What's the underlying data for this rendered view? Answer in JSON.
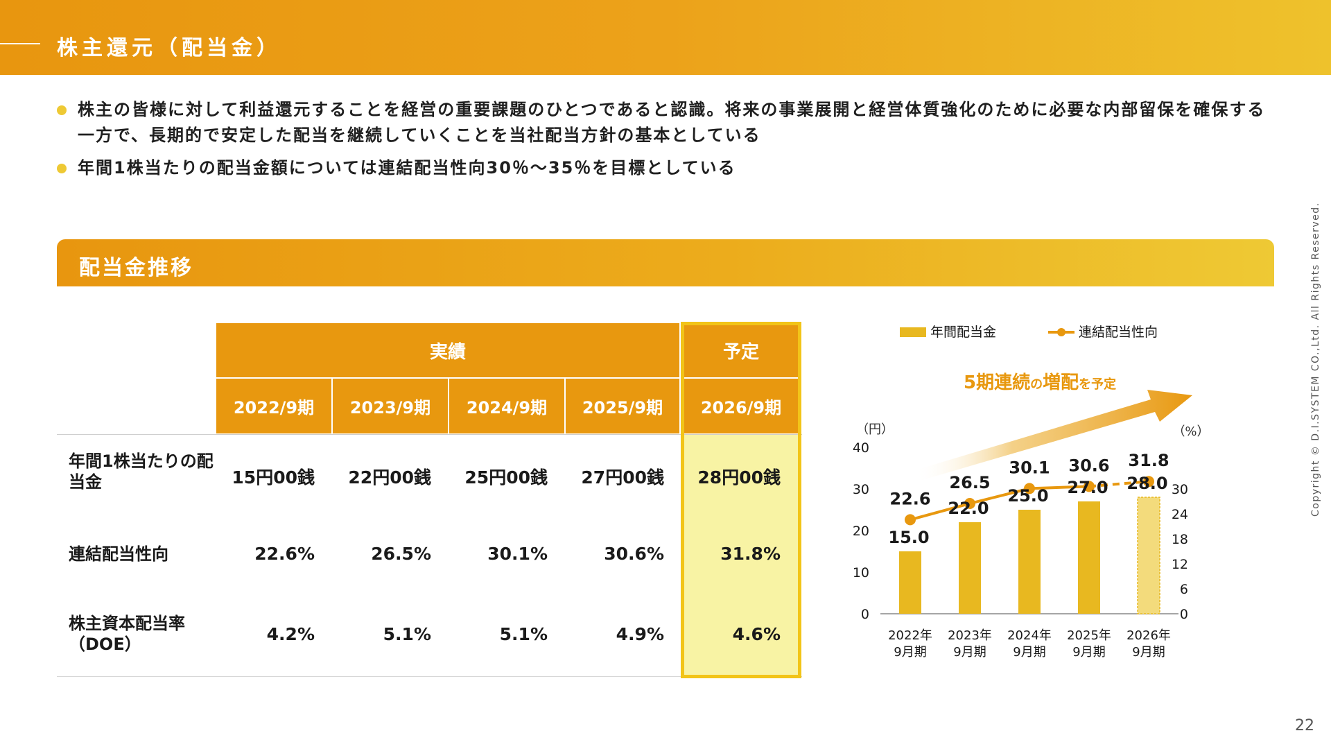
{
  "header": {
    "title": "株主還元（配当金）"
  },
  "bullets": [
    "株主の皆様に対して利益還元することを経営の重要課題のひとつであると認識。将来の事業展開と経営体質強化のために必要な内部留保を確保する一方で、長期的で安定した配当を継続していくことを当社配当方針の基本としている",
    "年間1株当たりの配当金額については連結配当性向30％～35％を目標としている"
  ],
  "section": {
    "title": "配当金推移"
  },
  "table": {
    "group_actual": "実績",
    "group_forecast": "予定",
    "periods": [
      "2022/9期",
      "2023/9期",
      "2024/9期",
      "2025/9期",
      "2026/9期"
    ],
    "rows": [
      {
        "label": "年間1株当たりの配当金",
        "values": [
          "15円00銭",
          "22円00銭",
          "25円00銭",
          "27円00銭",
          "28円00銭"
        ]
      },
      {
        "label": "連結配当性向",
        "values": [
          "22.6%",
          "26.5%",
          "30.1%",
          "30.6%",
          "31.8%"
        ]
      },
      {
        "label": "株主資本配当率（DOE）",
        "values": [
          "4.2%",
          "5.1%",
          "5.1%",
          "4.9%",
          "4.6%"
        ]
      }
    ]
  },
  "chart_data": {
    "type": "bar",
    "categories": [
      "2022年 9月期",
      "2023年 9月期",
      "2024年 9月期",
      "2025年 9月期",
      "2026年 9月期"
    ],
    "series": [
      {
        "name": "年間配当金",
        "type": "bar",
        "axis": "left",
        "values": [
          15.0,
          22.0,
          25.0,
          27.0,
          28.0
        ],
        "forecast_index": 4
      },
      {
        "name": "連結配当性向",
        "type": "line",
        "axis": "right",
        "values": [
          22.6,
          26.5,
          30.1,
          30.6,
          31.8
        ],
        "dashed_last_segment": true
      }
    ],
    "left_axis": {
      "unit": "（円）",
      "ylim": [
        0,
        40
      ],
      "ticks": [
        "0",
        "10",
        "20",
        "30",
        "40"
      ]
    },
    "right_axis": {
      "unit": "（%）",
      "ylim": [
        0,
        40
      ],
      "ticks": [
        "0",
        "6",
        "12",
        "18",
        "24",
        "30"
      ]
    },
    "annotation": {
      "main": "5期連続の増配",
      "emph1": "5期連続",
      "small1": "の",
      "emph2": "増配",
      "small2": "を予定"
    },
    "legend_position": "top",
    "grid": false,
    "colors": {
      "bar": "#e8b820",
      "bar_forecast": "#f3db7c",
      "line": "#e8980f"
    }
  },
  "copyright": "Copyright © D.I.SYSTEM CO.,Ltd. All Rights Reserved.",
  "page_number": "22"
}
